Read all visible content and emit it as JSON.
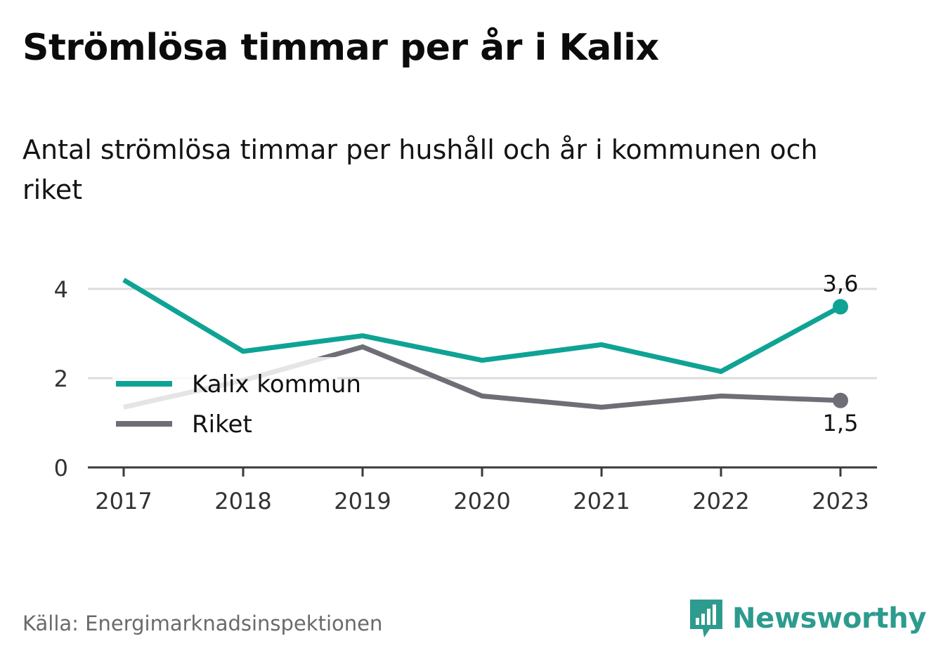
{
  "title": "Strömlösa timmar per år i Kalix",
  "subtitle": "Antal strömlösa timmar per hushåll och år i kommunen och riket",
  "source": "Källa: Energimarknadsinspektionen",
  "brand": {
    "name": "Newsworthy",
    "icon": "bar-chart-speech-bubble-icon",
    "color": "#2d9b8e"
  },
  "chart_data": {
    "type": "line",
    "x": [
      "2017",
      "2018",
      "2019",
      "2020",
      "2021",
      "2022",
      "2023"
    ],
    "ylim": [
      0,
      4.3
    ],
    "yticks": [
      0,
      2,
      4
    ],
    "grid": true,
    "legend_position": "left",
    "series": [
      {
        "name": "Kalix kommun",
        "color": "#0ea394",
        "values": [
          4.2,
          2.6,
          2.95,
          2.4,
          2.75,
          2.15,
          3.6
        ],
        "end_label": "3,6"
      },
      {
        "name": "Riket",
        "color": "#6e6e76",
        "values": [
          1.35,
          1.95,
          2.7,
          1.6,
          1.35,
          1.6,
          1.5
        ],
        "end_label": "1,5"
      }
    ]
  }
}
